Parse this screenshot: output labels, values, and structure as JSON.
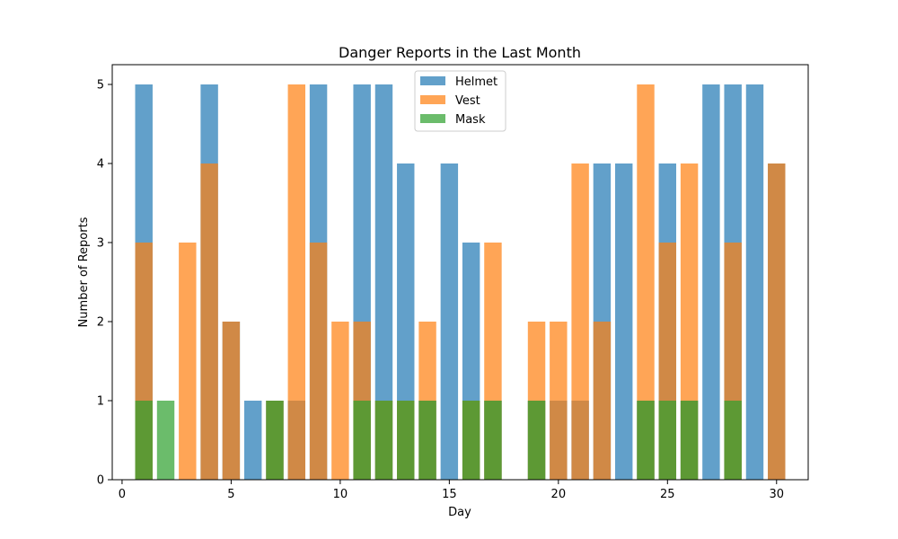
{
  "chart_data": {
    "type": "bar",
    "title": "Danger Reports in the Last Month",
    "xlabel": "Day",
    "ylabel": "Number of Reports",
    "x": [
      1,
      2,
      3,
      4,
      5,
      6,
      7,
      8,
      9,
      10,
      11,
      12,
      13,
      14,
      15,
      16,
      17,
      18,
      19,
      20,
      21,
      22,
      23,
      24,
      25,
      26,
      27,
      28,
      29,
      30
    ],
    "series": [
      {
        "name": "Helmet",
        "color": "#1f77b4",
        "values": [
          5,
          0,
          0,
          5,
          2,
          1,
          1,
          1,
          5,
          0,
          5,
          5,
          4,
          1,
          4,
          3,
          1,
          0,
          1,
          1,
          1,
          4,
          4,
          1,
          4,
          1,
          5,
          5,
          5,
          4
        ]
      },
      {
        "name": "Vest",
        "color": "#ff7f0e",
        "values": [
          3,
          0,
          3,
          4,
          2,
          0,
          1,
          5,
          3,
          2,
          2,
          1,
          1,
          2,
          0,
          1,
          3,
          0,
          2,
          2,
          4,
          2,
          0,
          5,
          3,
          4,
          0,
          3,
          0,
          4
        ]
      },
      {
        "name": "Mask",
        "color": "#2ca02c",
        "values": [
          1,
          1,
          0,
          0,
          0,
          0,
          1,
          0,
          0,
          0,
          1,
          1,
          1,
          1,
          0,
          1,
          1,
          0,
          1,
          0,
          0,
          0,
          0,
          1,
          1,
          1,
          0,
          1,
          0,
          0
        ]
      }
    ],
    "opacity": 0.7,
    "xlim": [
      -0.45,
      31.45
    ],
    "ylim": [
      0,
      5.25
    ],
    "xticks": [
      0,
      5,
      10,
      15,
      20,
      25,
      30
    ],
    "yticks": [
      0,
      1,
      2,
      3,
      4,
      5
    ],
    "grid": false,
    "legend_position": "top-center"
  }
}
